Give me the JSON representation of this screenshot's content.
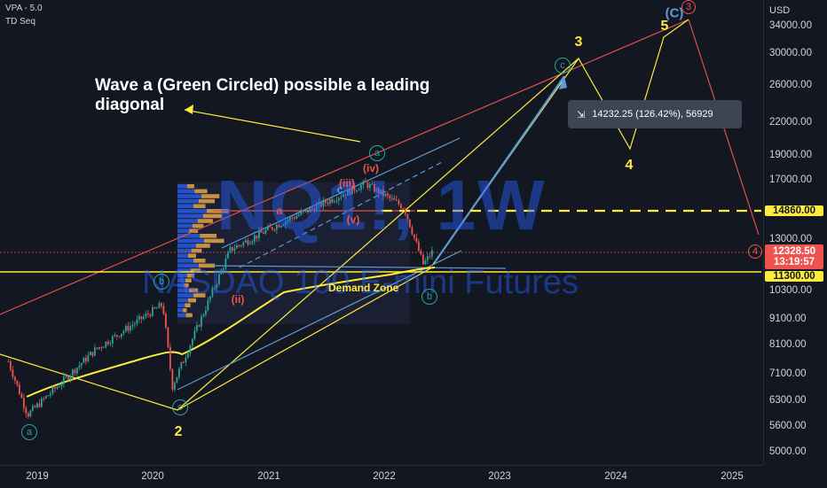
{
  "hud": {
    "line1": "VPA - 5.0",
    "line2": "TD Seq"
  },
  "annotation": {
    "line1": "Wave a (Green Circled) possible a leading",
    "line2": "diagonal"
  },
  "demand_zone": "Demand Zone",
  "watermark": {
    "symbol": "NQ1!, 1W",
    "name": "NASDAQ 100 E-mini Futures"
  },
  "measure": {
    "icon": "measure-icon",
    "text": "14232.25 (126.42%), 56929"
  },
  "price_tags": {
    "level_1": "14860.00",
    "last_price": "12328.50",
    "countdown": "13:19:57",
    "level_2": "11300.00"
  },
  "colors": {
    "background": "#131722",
    "up": "#26a69a",
    "down": "#ef5350",
    "yellow": "#ffeb3b",
    "blue": "#5b9bd5",
    "red_trend": "#e0504a"
  },
  "chart_data": {
    "type": "candlestick",
    "price_scale": "log",
    "currency": "USD",
    "y_ticks": [
      34000,
      30000,
      26000,
      22000,
      19000,
      17000,
      13000,
      10300,
      9100,
      8100,
      7100,
      6300,
      5600,
      5000
    ],
    "y_tick_labels": [
      "34000.00",
      "30000.00",
      "26000.00",
      "22000.00",
      "19000.00",
      "17000.00",
      "13000.00",
      "10300.00",
      "9100.00",
      "8100.00",
      "7100.00",
      "6300.00",
      "5600.00",
      "5000.00"
    ],
    "x_ticks": [
      "2019",
      "2020",
      "2021",
      "2022",
      "2023",
      "2024",
      "2025"
    ],
    "key_closes": [
      {
        "date": "2018-10",
        "value": 7500
      },
      {
        "date": "2018-12",
        "value": 5900
      },
      {
        "date": "2019-07",
        "value": 7900
      },
      {
        "date": "2020-02",
        "value": 9700
      },
      {
        "date": "2020-03",
        "value": 6700
      },
      {
        "date": "2020-09",
        "value": 12400
      },
      {
        "date": "2021-02",
        "value": 13900
      },
      {
        "date": "2021-11",
        "value": 16700
      },
      {
        "date": "2022-03",
        "value": 15000
      },
      {
        "date": "2022-05",
        "value": 11600
      },
      {
        "date": "2022-06",
        "value": 12328.5
      }
    ],
    "levels": [
      14860,
      11300
    ],
    "wave_labels": [
      {
        "text": "a",
        "style": "green-circle"
      },
      {
        "text": "b",
        "style": "green-circle"
      },
      {
        "text": "c",
        "style": "green-circle"
      },
      {
        "text": "a",
        "style": "green-circle"
      },
      {
        "text": "b",
        "style": "green-circle"
      },
      {
        "text": "c",
        "style": "green-circle"
      },
      {
        "text": "2",
        "style": "yellow"
      },
      {
        "text": "3",
        "style": "yellow"
      },
      {
        "text": "4",
        "style": "yellow"
      },
      {
        "text": "5",
        "style": "yellow"
      },
      {
        "text": "(ii)",
        "style": "red"
      },
      {
        "text": "(iii)",
        "style": "red"
      },
      {
        "text": "(iv)",
        "style": "red"
      },
      {
        "text": "(v)",
        "style": "red"
      },
      {
        "text": "(C)",
        "style": "blue"
      },
      {
        "text": "3",
        "style": "red-circle"
      },
      {
        "text": "4",
        "style": "red-circle"
      },
      {
        "text": "a",
        "style": "red"
      },
      {
        "text": "c",
        "style": "blue"
      }
    ]
  }
}
